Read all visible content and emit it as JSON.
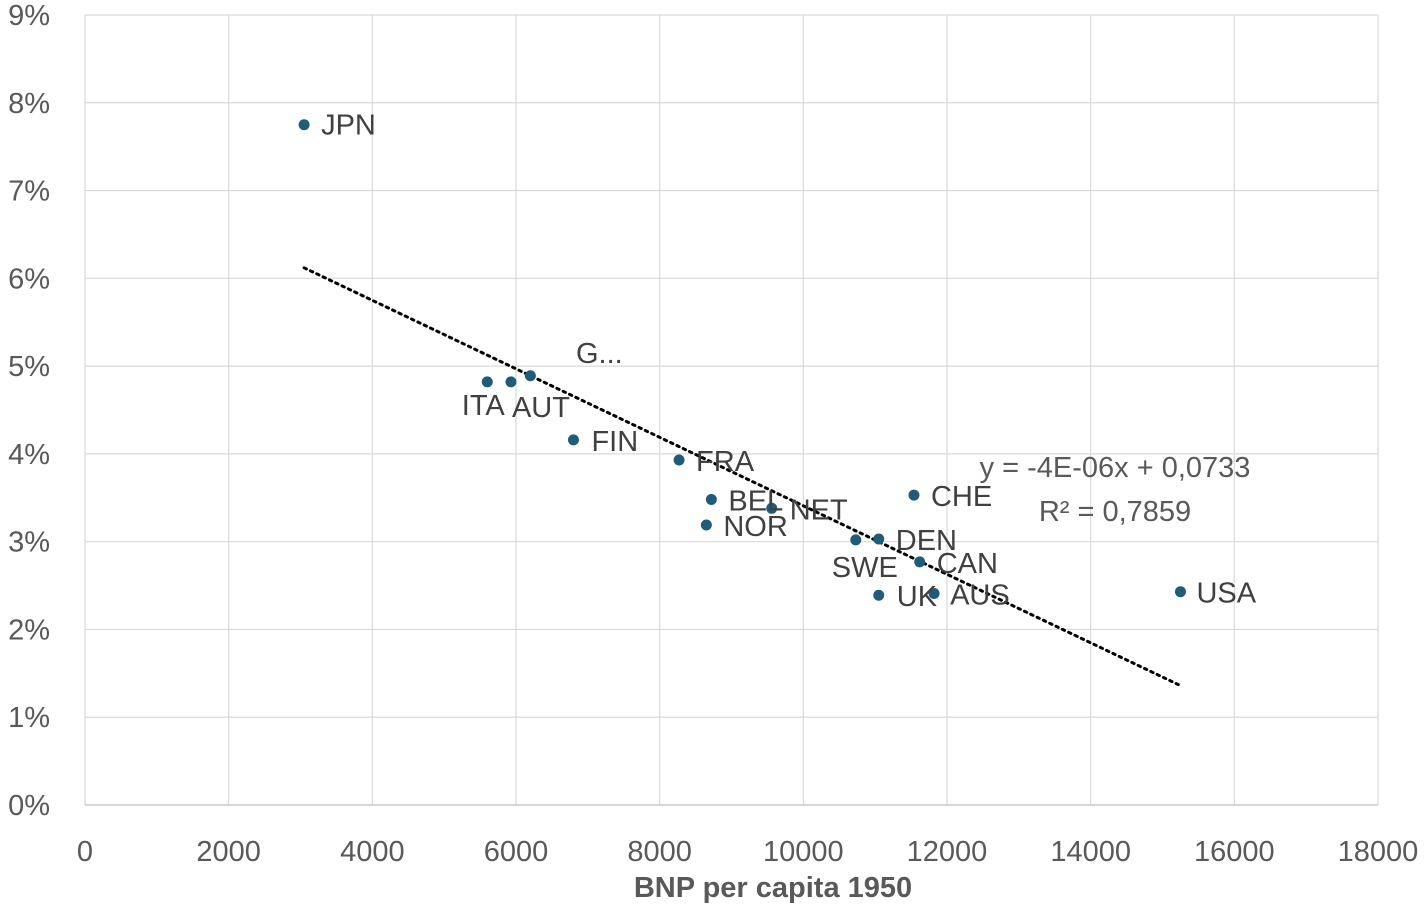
{
  "chart_data": {
    "type": "scatter",
    "title": "",
    "xlabel": "BNP per capita 1950",
    "ylabel": "",
    "xlim": [
      0,
      18000
    ],
    "ylim": [
      0,
      0.09
    ],
    "x_ticks": [
      {
        "value": 0,
        "label": "0"
      },
      {
        "value": 2000,
        "label": "2000"
      },
      {
        "value": 4000,
        "label": "4000"
      },
      {
        "value": 6000,
        "label": "6000"
      },
      {
        "value": 8000,
        "label": "8000"
      },
      {
        "value": 10000,
        "label": "10000"
      },
      {
        "value": 12000,
        "label": "12000"
      },
      {
        "value": 14000,
        "label": "14000"
      },
      {
        "value": 16000,
        "label": "16000"
      },
      {
        "value": 18000,
        "label": "18000"
      }
    ],
    "y_ticks": [
      {
        "value": 0,
        "label": "0%"
      },
      {
        "value": 0.01,
        "label": "1%"
      },
      {
        "value": 0.02,
        "label": "2%"
      },
      {
        "value": 0.03,
        "label": "3%"
      },
      {
        "value": 0.04,
        "label": "4%"
      },
      {
        "value": 0.05,
        "label": "5%"
      },
      {
        "value": 0.06,
        "label": "6%"
      },
      {
        "value": 0.07,
        "label": "7%"
      },
      {
        "value": 0.08,
        "label": "8%"
      },
      {
        "value": 0.09,
        "label": "9%"
      }
    ],
    "grid": true,
    "legend": "none",
    "marker_color": "#1f5c7a",
    "points": [
      {
        "label": "JPN",
        "x": 3050,
        "y": 0.0775
      },
      {
        "label": "ITA",
        "x": 5600,
        "y": 0.0482
      },
      {
        "label": "AUT",
        "x": 5930,
        "y": 0.0482
      },
      {
        "label": "G...",
        "x": 6200,
        "y": 0.0489
      },
      {
        "label": "FIN",
        "x": 6800,
        "y": 0.0416
      },
      {
        "label": "FRA",
        "x": 8270,
        "y": 0.0393
      },
      {
        "label": "BEL",
        "x": 8720,
        "y": 0.0348
      },
      {
        "label": "NOR",
        "x": 8650,
        "y": 0.0319
      },
      {
        "label": "NET",
        "x": 9560,
        "y": 0.0338
      },
      {
        "label": "SWE",
        "x": 10730,
        "y": 0.0302
      },
      {
        "label": "DEN",
        "x": 11050,
        "y": 0.0303
      },
      {
        "label": "CHE",
        "x": 11540,
        "y": 0.0353
      },
      {
        "label": "CAN",
        "x": 11620,
        "y": 0.0277
      },
      {
        "label": "UK",
        "x": 11050,
        "y": 0.0239
      },
      {
        "label": "AUS",
        "x": 11820,
        "y": 0.0241
      },
      {
        "label": "USA",
        "x": 15250,
        "y": 0.0243
      }
    ],
    "trendline": {
      "type": "linear",
      "style": "dotted",
      "color": "#000000",
      "x_start": 3050,
      "x_end": 15250,
      "y_start": 0.0612,
      "y_end": 0.0136,
      "equation": "y = -4E-06x + 0,0733",
      "r_squared": "R² = 0,7859"
    }
  }
}
